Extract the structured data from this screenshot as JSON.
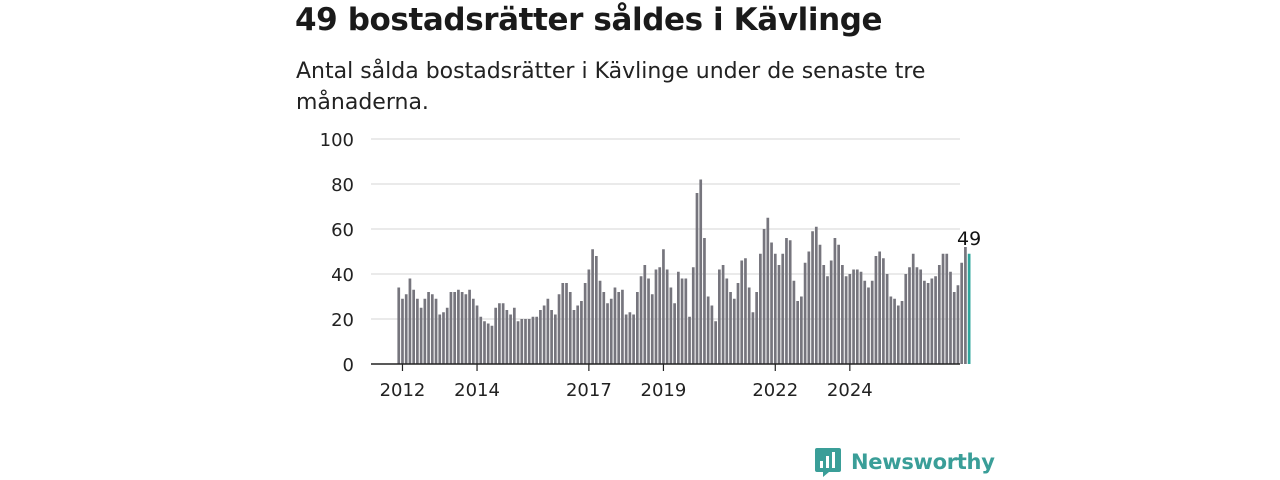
{
  "title": "49 bostadsrätter såldes i Kävlinge",
  "subtitle": "Antal sålda bostadsrätter i Kävlinge under de senaste tre månaderna.",
  "brand": {
    "name": "Newsworthy",
    "color": "#3a9e98",
    "icon": "newsworthy-chart-icon"
  },
  "colors": {
    "bar": "#76757d",
    "highlight": "#2fa59c",
    "grid": "#dddddd",
    "axis": "#222222"
  },
  "chart_data": {
    "type": "bar",
    "ylim": [
      0,
      100
    ],
    "yticks": [
      0,
      20,
      40,
      60,
      80,
      100
    ],
    "xtick_labels": [
      "2012",
      "2014",
      "2017",
      "2019",
      "2022",
      "2024"
    ],
    "xtick_index": [
      1,
      21,
      51,
      71,
      101,
      121
    ],
    "grid": true,
    "highlight_label": "49",
    "values": [
      34,
      29,
      31,
      38,
      33,
      29,
      25,
      29,
      32,
      31,
      29,
      22,
      23,
      25,
      32,
      32,
      33,
      32,
      31,
      33,
      29,
      26,
      21,
      19,
      18,
      17,
      25,
      27,
      27,
      24,
      22,
      25,
      19,
      20,
      20,
      20,
      21,
      21,
      24,
      26,
      29,
      24,
      22,
      31,
      36,
      36,
      32,
      24,
      26,
      28,
      36,
      42,
      51,
      48,
      37,
      32,
      27,
      29,
      34,
      32,
      33,
      22,
      23,
      22,
      32,
      39,
      44,
      38,
      31,
      42,
      43,
      51,
      42,
      34,
      27,
      41,
      38,
      38,
      21,
      43,
      76,
      82,
      56,
      30,
      26,
      19,
      42,
      44,
      38,
      32,
      29,
      36,
      46,
      47,
      34,
      23,
      32,
      49,
      60,
      65,
      54,
      49,
      44,
      49,
      56,
      55,
      37,
      28,
      30,
      45,
      50,
      59,
      61,
      53,
      44,
      39,
      46,
      56,
      53,
      44,
      39,
      40,
      42,
      42,
      41,
      37,
      34,
      37,
      48,
      50,
      47,
      40,
      30,
      29,
      26,
      28,
      40,
      43,
      49,
      43,
      42,
      37,
      36,
      38,
      39,
      44,
      49,
      49,
      41,
      32,
      35,
      45,
      52,
      49
    ]
  }
}
